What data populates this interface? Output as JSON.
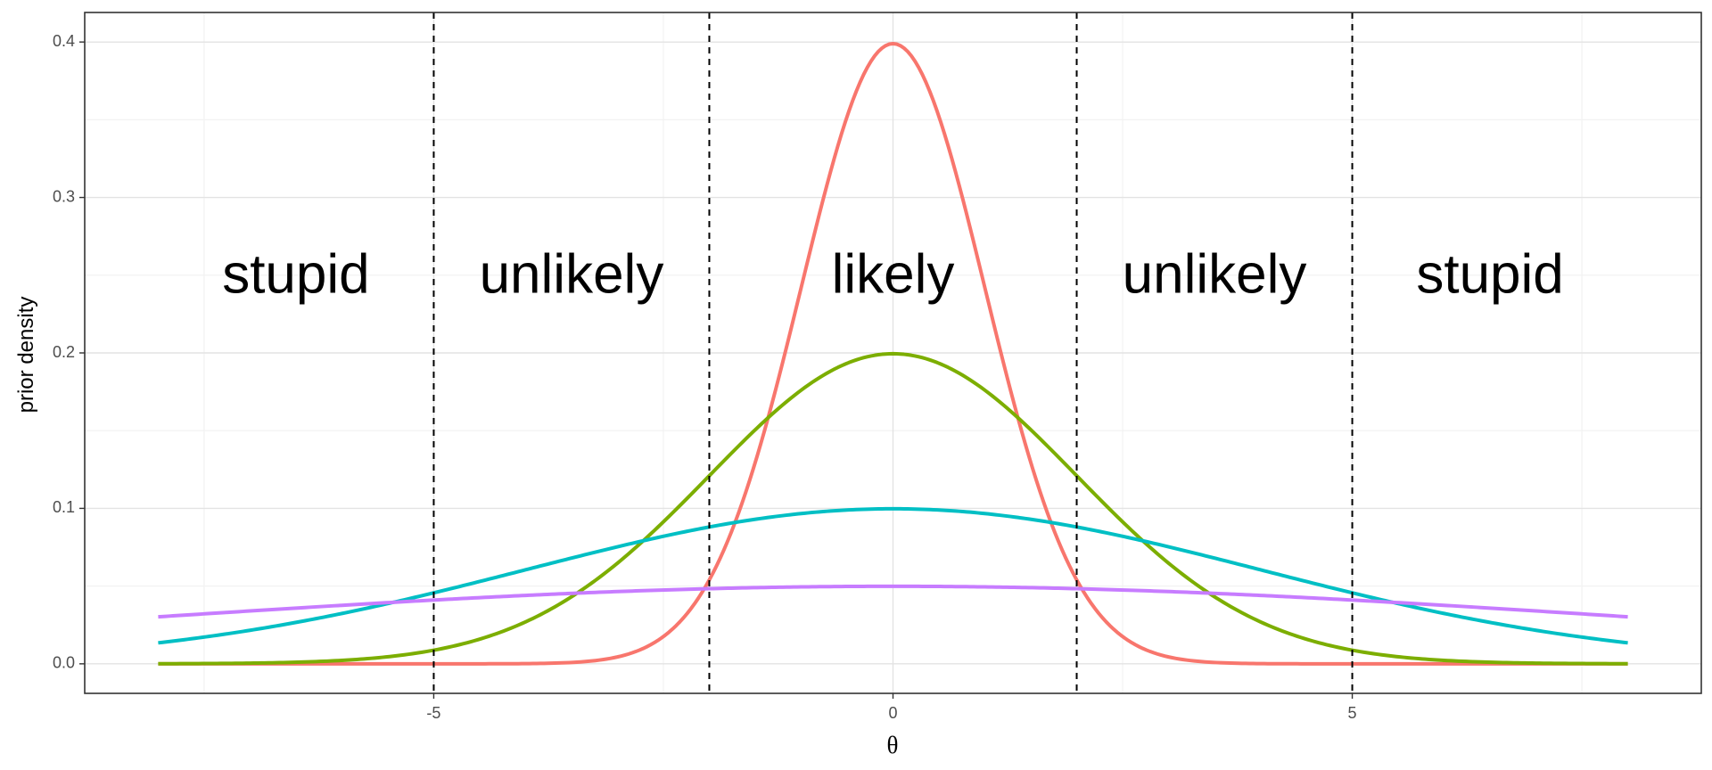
{
  "chart_data": {
    "type": "line",
    "xlabel": "θ",
    "ylabel": "prior density",
    "xlim": [
      -8.8,
      8.8
    ],
    "ylim": [
      -0.019,
      0.419
    ],
    "x_ticks": [
      -5,
      0,
      5
    ],
    "x_tick_labels": [
      "-5",
      "0",
      "5"
    ],
    "y_ticks": [
      0.0,
      0.1,
      0.2,
      0.3,
      0.4
    ],
    "y_tick_labels": [
      "0.0",
      "0.1",
      "0.2",
      "0.3",
      "0.4"
    ],
    "grid": true,
    "legend": "none",
    "x_range_of_curves": [
      -8,
      8
    ],
    "series": [
      {
        "sd": 1,
        "color": "#F8766D"
      },
      {
        "sd": 2,
        "color": "#7CAE00"
      },
      {
        "sd": 4,
        "color": "#00BFC4"
      },
      {
        "sd": 8,
        "color": "#C77CFF"
      }
    ],
    "vlines": [
      -5,
      -2,
      2,
      5
    ],
    "annotations": [
      {
        "text": "stupid",
        "x": -6.5,
        "y": 0.248
      },
      {
        "text": "unlikely",
        "x": -3.5,
        "y": 0.248
      },
      {
        "text": "likely",
        "x": 0,
        "y": 0.248
      },
      {
        "text": "unlikely",
        "x": 3.5,
        "y": 0.248
      },
      {
        "text": "stupid",
        "x": 6.5,
        "y": 0.248
      }
    ]
  }
}
